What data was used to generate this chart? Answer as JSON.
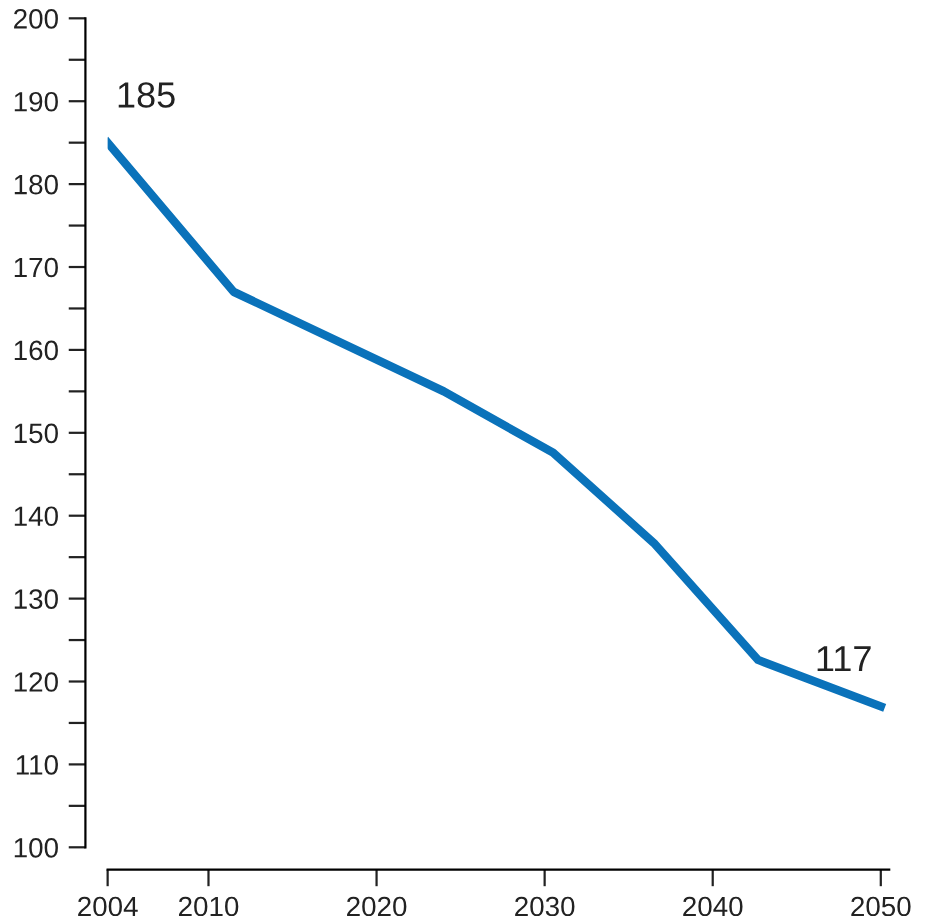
{
  "chart_data": {
    "type": "line",
    "x": [
      2004,
      2011.5,
      2024,
      2030.5,
      2036.5,
      2042.7,
      2050
    ],
    "series": [
      {
        "color": "#0a72ba",
        "values": [
          185,
          167,
          155,
          147.6,
          136.7,
          122.6,
          117
        ]
      }
    ],
    "annotations": [
      {
        "text": "185",
        "x": 2004,
        "y": 185
      },
      {
        "text": "117",
        "x": 2050,
        "y": 117
      }
    ],
    "xlim": [
      2004,
      2050.5
    ],
    "xticks": [
      2004,
      2010,
      2020,
      2030,
      2040,
      2050
    ],
    "ylim": [
      100,
      200
    ],
    "yticks": [
      100,
      {
        "value": 105,
        "label": null
      },
      110,
      {
        "value": 115,
        "label": null
      },
      120,
      {
        "value": 125,
        "label": null
      },
      130,
      {
        "value": 135,
        "label": null
      },
      140,
      {
        "value": 145,
        "label": null
      },
      150,
      {
        "value": 155,
        "label": null
      },
      160,
      {
        "value": 165,
        "label": null
      },
      170,
      {
        "value": 175,
        "label": null
      },
      180,
      {
        "value": 185,
        "label": null
      },
      190,
      {
        "value": 195,
        "label": null
      },
      200
    ],
    "grid": false,
    "marker": "none",
    "line_style": "solid"
  }
}
